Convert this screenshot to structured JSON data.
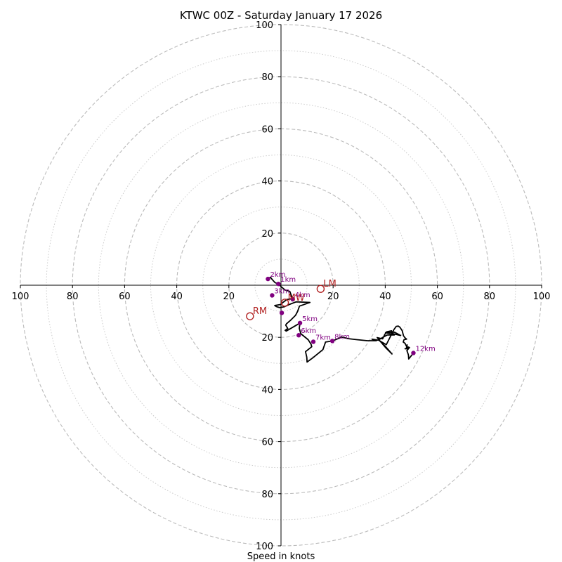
{
  "chart_data": {
    "type": "hodograph",
    "title": "KTWC 00Z - Saturday January 17 2026",
    "xlabel": "Speed in knots",
    "units": "knots",
    "rlim": 100,
    "major_rings": [
      20,
      40,
      60,
      80,
      100
    ],
    "minor_rings": [
      10,
      30,
      50,
      70,
      90
    ],
    "tick_values": [
      20,
      40,
      60,
      80,
      100
    ],
    "x_tick_labels": [
      "100",
      "80",
      "60",
      "40",
      "20",
      "20",
      "40",
      "60",
      "80",
      "100"
    ],
    "y_tick_labels": [
      "100",
      "80",
      "60",
      "40",
      "20",
      "20",
      "40",
      "60",
      "80",
      "100"
    ],
    "colors": {
      "trace": "#000000",
      "height_marker": "#800080",
      "storm_motion": "#b22222",
      "major_grid": "#bbbbbb",
      "minor_grid": "#cccccc"
    },
    "trace": [
      [
        -5.0,
        2.7
      ],
      [
        -4.0,
        3.0
      ],
      [
        -3.4,
        2.2
      ],
      [
        -2.3,
        1.0
      ],
      [
        -1.0,
        0.5
      ],
      [
        0.0,
        -0.5
      ],
      [
        1.5,
        -1.8
      ],
      [
        3.4,
        -2.4
      ],
      [
        4.5,
        -5.4
      ],
      [
        4.0,
        -5.2
      ],
      [
        2.2,
        -5.5
      ],
      [
        0.9,
        -6.5
      ],
      [
        -0.2,
        -7.4
      ],
      [
        -2.4,
        -7.8
      ],
      [
        -1.8,
        -8.2
      ],
      [
        -0.5,
        -8.6
      ],
      [
        1.2,
        -8.3
      ],
      [
        3.4,
        -7.3
      ],
      [
        5.8,
        -6.4
      ],
      [
        11.1,
        -6.6
      ],
      [
        8.3,
        -7.6
      ],
      [
        7.1,
        -8.0
      ],
      [
        6.4,
        -10.0
      ],
      [
        5.6,
        -11.5
      ],
      [
        3.6,
        -13.5
      ],
      [
        2.1,
        -14.8
      ],
      [
        1.8,
        -15.3
      ],
      [
        2.6,
        -16.6
      ],
      [
        1.6,
        -17.3
      ],
      [
        2.0,
        -17.6
      ],
      [
        7.3,
        -14.5
      ],
      [
        7.0,
        -16.5
      ],
      [
        7.6,
        -18.6
      ],
      [
        10.4,
        -20.9
      ],
      [
        11.5,
        -22.6
      ],
      [
        11.8,
        -23.6
      ],
      [
        9.4,
        -25.5
      ],
      [
        9.9,
        -27.6
      ],
      [
        10.0,
        -29.5
      ],
      [
        12.4,
        -27.7
      ],
      [
        16.1,
        -24.7
      ],
      [
        17.1,
        -21.8
      ],
      [
        19.7,
        -21.4
      ],
      [
        23.3,
        -19.9
      ],
      [
        25.9,
        -20.5
      ],
      [
        29.1,
        -20.9
      ],
      [
        33.1,
        -21.3
      ],
      [
        36.6,
        -21.3
      ],
      [
        34.9,
        -20.7
      ],
      [
        37.3,
        -21.1
      ],
      [
        38.9,
        -20.1
      ],
      [
        40.7,
        -19.1
      ],
      [
        43.5,
        -19.1
      ],
      [
        42.4,
        -18.7
      ],
      [
        40.1,
        -18.2
      ],
      [
        43.5,
        -18.0
      ],
      [
        45.9,
        -19.3
      ],
      [
        42.6,
        -18.5
      ],
      [
        42.4,
        -17.5
      ],
      [
        40.5,
        -17.9
      ],
      [
        39.8,
        -18.9
      ],
      [
        39.0,
        -20.6
      ],
      [
        36.9,
        -20.1
      ],
      [
        40.1,
        -23.9
      ],
      [
        42.6,
        -26.4
      ],
      [
        39.8,
        -23.2
      ],
      [
        37.8,
        -21.3
      ],
      [
        40.4,
        -22.8
      ],
      [
        43.3,
        -17.1
      ],
      [
        44.2,
        -15.8
      ],
      [
        45.0,
        -15.7
      ],
      [
        45.6,
        -16.1
      ],
      [
        46.5,
        -17.4
      ],
      [
        47.0,
        -19.4
      ],
      [
        47.6,
        -20.2
      ],
      [
        48.2,
        -20.7
      ],
      [
        47.2,
        -20.9
      ],
      [
        46.9,
        -21.8
      ],
      [
        47.6,
        -22.3
      ],
      [
        48.1,
        -23.4
      ],
      [
        48.4,
        -22.9
      ],
      [
        48.1,
        -24.2
      ],
      [
        47.6,
        -24.4
      ],
      [
        48.6,
        -24.4
      ],
      [
        48.7,
        -23.7
      ],
      [
        49.3,
        -23.9
      ],
      [
        48.3,
        -25.1
      ],
      [
        48.7,
        -26.2
      ],
      [
        48.9,
        -26.8
      ],
      [
        49.0,
        -28.3
      ],
      [
        50.8,
        -26.0
      ]
    ],
    "height_markers": [
      {
        "label": "1km",
        "u": -1.0,
        "v": 0.5
      },
      {
        "label": "2km",
        "u": -5.0,
        "v": 2.4
      },
      {
        "label": "3km",
        "u": -3.4,
        "v": -3.9
      },
      {
        "label": "4km",
        "u": 4.5,
        "v": -5.4
      },
      {
        "label": "5km",
        "u": 7.3,
        "v": -14.5
      },
      {
        "label": "6km",
        "u": 6.8,
        "v": -19.2
      },
      {
        "label": "7km",
        "u": 12.4,
        "v": -21.7
      },
      {
        "label": "8km",
        "u": 19.7,
        "v": -21.4
      },
      {
        "label": "12km",
        "u": 50.8,
        "v": -26.0
      },
      {
        "label": "",
        "u": 0.3,
        "v": -10.6
      }
    ],
    "storm_motion": [
      {
        "label": "LM",
        "u": 15.2,
        "v": -1.4
      },
      {
        "label": "RM",
        "u": -11.9,
        "v": -11.9
      },
      {
        "label": "MW",
        "u": 1.5,
        "v": -6.7
      }
    ]
  }
}
